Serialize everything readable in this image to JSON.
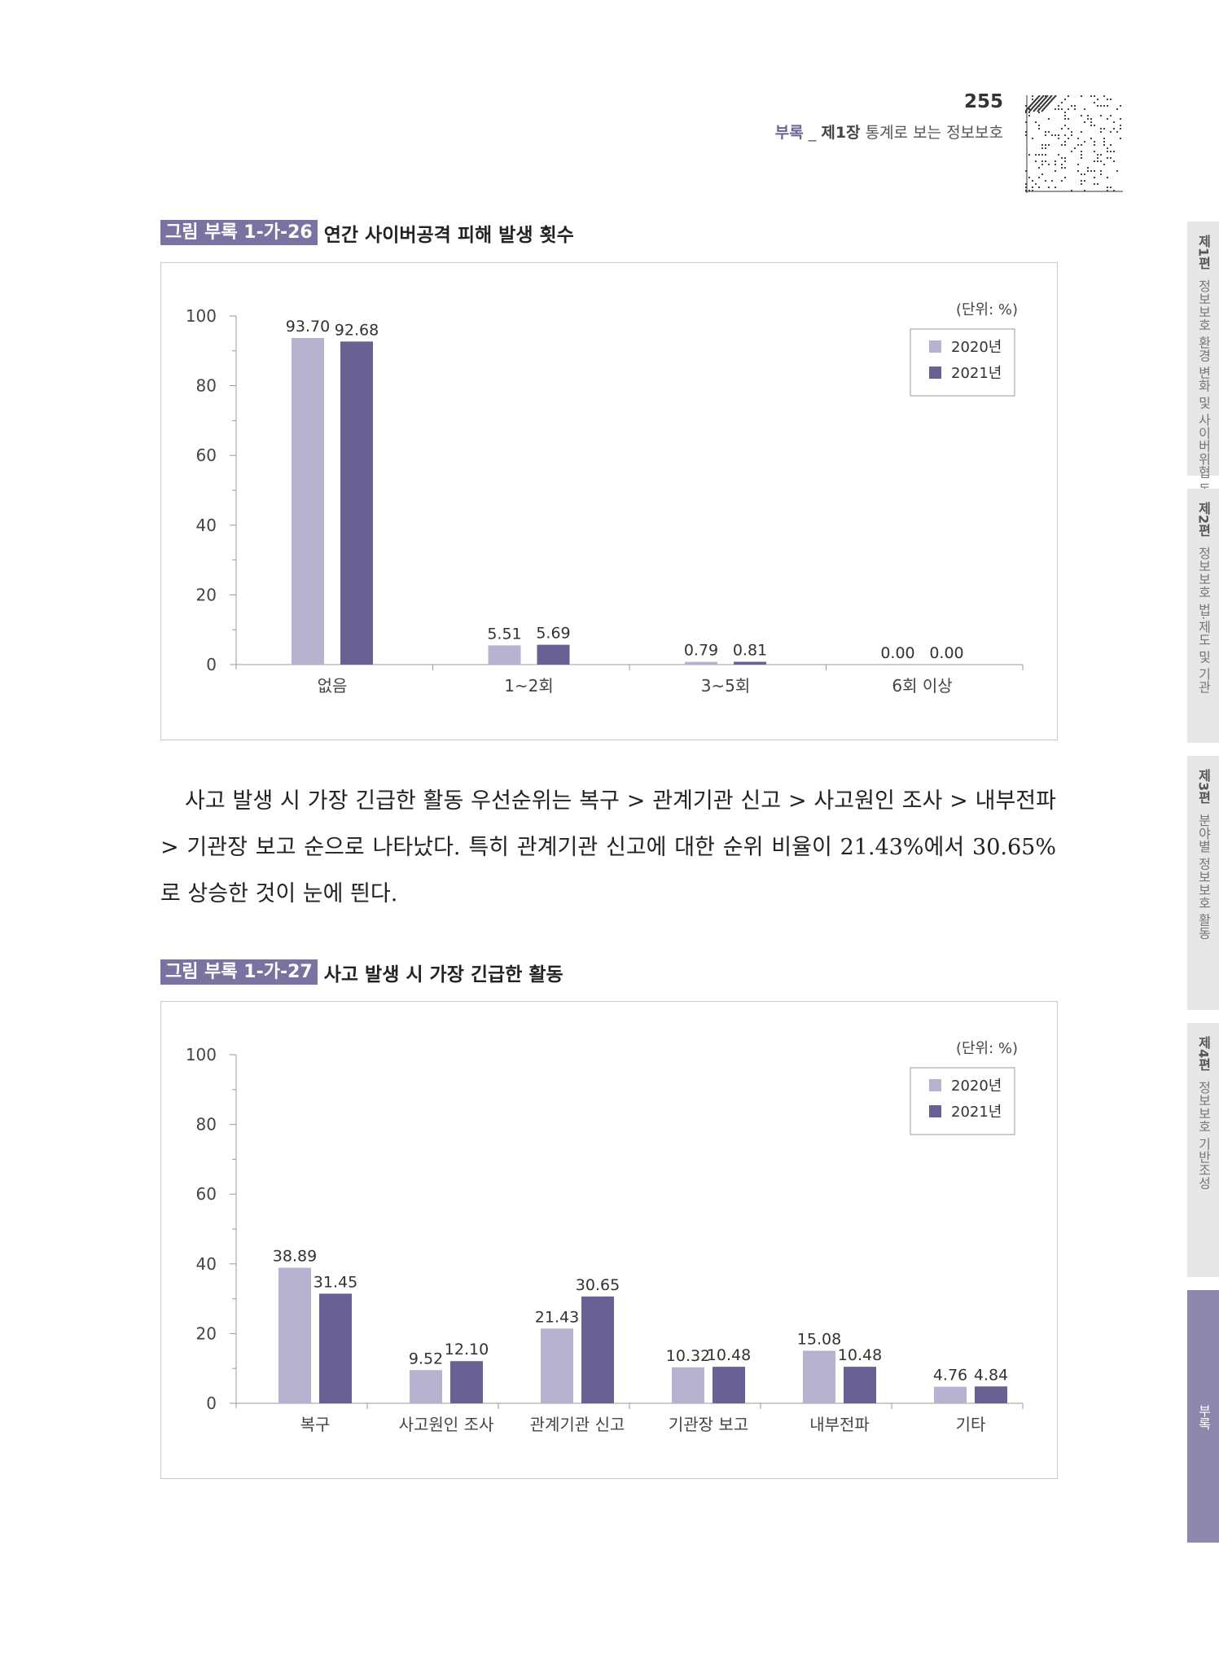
{
  "header": {
    "page_number": "255",
    "section": "부록",
    "separator": " _ ",
    "chapter": "제1장",
    "chapter_title": " 통계로 보는 정보보호"
  },
  "side_tabs": [
    {
      "part": "제1편",
      "title": "정보보호 환경 변화 및 사이버위협 동향"
    },
    {
      "part": "제2편",
      "title": "정보보호 법·제도 및 기관"
    },
    {
      "part": "제3편",
      "title": "분야별 정보보호 활동"
    },
    {
      "part": "제4편",
      "title": "정보보호 기반조성"
    },
    {
      "part": "",
      "title": "부록"
    }
  ],
  "figure1": {
    "number": "그림 부록 1-가-26",
    "title": "연간 사이버공격 피해 발생 횟수"
  },
  "figure2": {
    "number": "그림 부록 1-가-27",
    "title": "사고 발생 시 가장 긴급한 활동"
  },
  "body_text": "사고 발생 시 가장 긴급한 활동 우선순위는 복구 > 관계기관 신고 > 사고원인 조사 > 내부전파 > 기관장 보고 순으로 나타났다. 특히 관계기관 신고에 대한 순위 비율이 21.43%에서 30.65%로 상승한 것이 눈에 띈다.",
  "colors": {
    "series_2020": "#b6b3d1",
    "series_2021": "#686294",
    "axis": "#999999",
    "label": "#333333"
  },
  "chart_data": [
    {
      "type": "bar",
      "title": "연간 사이버공격 피해 발생 횟수",
      "unit_label": "(단위: %)",
      "categories": [
        "없음",
        "1~2회",
        "3~5회",
        "6회 이상"
      ],
      "series": [
        {
          "name": "2020년",
          "values": [
            93.7,
            5.51,
            0.79,
            0.0
          ],
          "labels": [
            "93.70",
            "5.51",
            "0.79",
            "0.00"
          ]
        },
        {
          "name": "2021년",
          "values": [
            92.68,
            5.69,
            0.81,
            0.0
          ],
          "labels": [
            "92.68",
            "5.69",
            "0.81",
            "0.00"
          ]
        }
      ],
      "yticks": [
        "0",
        "20",
        "40",
        "60",
        "80",
        "100"
      ],
      "ylim": [
        0,
        100
      ],
      "legend": "top-right"
    },
    {
      "type": "bar",
      "title": "사고 발생 시 가장 긴급한 활동",
      "unit_label": "(단위: %)",
      "categories": [
        "복구",
        "사고원인 조사",
        "관계기관 신고",
        "기관장 보고",
        "내부전파",
        "기타"
      ],
      "series": [
        {
          "name": "2020년",
          "values": [
            38.89,
            9.52,
            21.43,
            10.32,
            15.08,
            4.76
          ],
          "labels": [
            "38.89",
            "9.52",
            "21.43",
            "10.32",
            "15.08",
            "4.76"
          ]
        },
        {
          "name": "2021년",
          "values": [
            31.45,
            12.1,
            30.65,
            10.48,
            10.48,
            4.84
          ],
          "labels": [
            "31.45",
            "12.10",
            "30.65",
            "10.48",
            "10.48",
            "4.84"
          ]
        }
      ],
      "yticks": [
        "0",
        "20",
        "40",
        "60",
        "80",
        "100"
      ],
      "ylim": [
        0,
        100
      ],
      "legend": "top-right"
    }
  ]
}
